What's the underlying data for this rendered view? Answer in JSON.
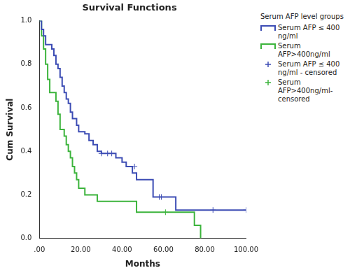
{
  "chart_data": {
    "type": "line",
    "title": "Survival Functions",
    "x_label": "Months",
    "y_label": "Cum Survival",
    "legend_title": "Serum AFP level groups",
    "legend": "right",
    "grid": false,
    "xlim": [
      0,
      100
    ],
    "xticks": [
      {
        "value": 0,
        "label": ".00"
      },
      {
        "value": 20,
        "label": "20.00"
      },
      {
        "value": 40,
        "label": "40.00"
      },
      {
        "value": 60,
        "label": "60.00"
      },
      {
        "value": 80,
        "label": "80.00"
      },
      {
        "value": 100,
        "label": "100.00"
      }
    ],
    "ylim": [
      0,
      1
    ],
    "yticks": [
      {
        "value": 0,
        "label": "0.0"
      },
      0.2,
      0.4,
      0.6,
      0.8,
      {
        "value": 1,
        "label": "1.0"
      }
    ],
    "series": [
      {
        "name": "Serum AFP ≤ 400 ng/ml",
        "type": "line",
        "line_style": "step",
        "color": "#3c4cb4",
        "x": [
          0,
          1,
          2,
          3,
          6,
          7,
          8,
          9,
          10,
          11,
          12,
          13,
          14,
          15,
          16,
          18,
          19,
          22,
          24,
          26,
          28,
          30,
          37,
          40,
          42,
          45,
          47,
          55,
          66,
          100
        ],
        "values": [
          1.0,
          0.96,
          0.93,
          0.89,
          0.87,
          0.84,
          0.8,
          0.78,
          0.74,
          0.7,
          0.67,
          0.64,
          0.62,
          0.58,
          0.55,
          0.52,
          0.49,
          0.48,
          0.45,
          0.43,
          0.4,
          0.39,
          0.37,
          0.35,
          0.33,
          0.3,
          0.27,
          0.19,
          0.13,
          0.13
        ]
      },
      {
        "name": "Serum AFP>400ng/ml",
        "type": "line",
        "line_style": "step",
        "color": "#3cb43c",
        "x": [
          0,
          1,
          2,
          3,
          4,
          5,
          8,
          9,
          10,
          12,
          13,
          14,
          15,
          16,
          17,
          18,
          19,
          22,
          28,
          47,
          75,
          78
        ],
        "values": [
          1.0,
          0.93,
          0.87,
          0.8,
          0.73,
          0.67,
          0.63,
          0.57,
          0.5,
          0.47,
          0.43,
          0.4,
          0.37,
          0.33,
          0.3,
          0.27,
          0.23,
          0.2,
          0.17,
          0.12,
          0.06,
          0.0
        ]
      },
      {
        "name": "Serum AFP ≤ 400 ng/ml - censored",
        "type": "scatter",
        "marker": "cross",
        "color": "#3c4cb4",
        "x": [
          30,
          33,
          35,
          46,
          58,
          59,
          84,
          100
        ],
        "values": [
          0.39,
          0.39,
          0.39,
          0.33,
          0.19,
          0.19,
          0.13,
          0.13
        ]
      },
      {
        "name": "Serum AFP>400ng/ml-censored",
        "type": "scatter",
        "marker": "cross",
        "color": "#3cb43c",
        "x": [
          61
        ],
        "values": [
          0.12
        ]
      }
    ]
  }
}
